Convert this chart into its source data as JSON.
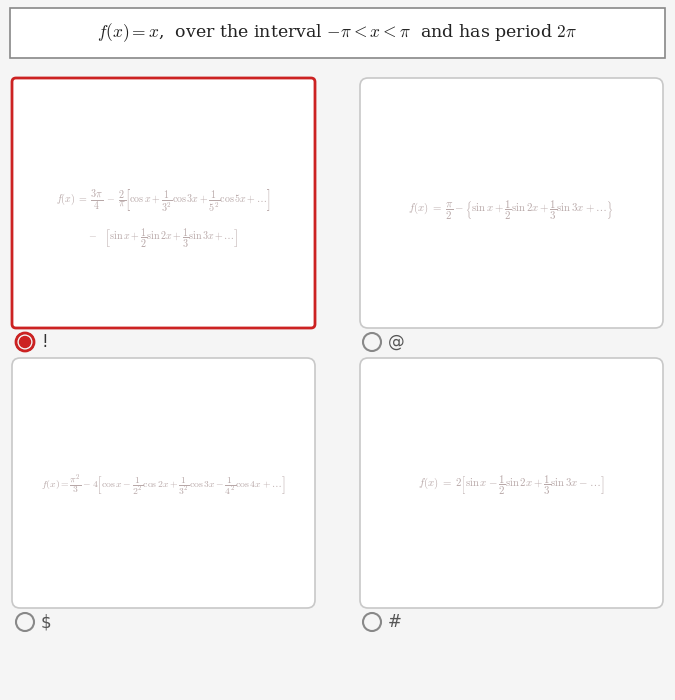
{
  "title": "$f(x) = x$,  over the interval $-\\pi < x < \\pi$  and has period $2\\pi$",
  "bg_color": "#f5f5f5",
  "formula_color": "#b8a8a8",
  "title_color": "#222222",
  "box1_line1": "$f(x)\\; =\\; \\dfrac{3\\pi}{4}\\; -\\; \\dfrac{2}{\\pi} \\left[ \\cos x + \\dfrac{1}{3^2}\\cos 3x + \\dfrac{1}{5^2}\\cos 5x + \\ldots \\right]$",
  "box1_line2": "$-\\quad\\left[ \\sin x + \\dfrac{1}{2}\\sin 2x + \\dfrac{1}{3}\\sin 3x + \\ldots \\right]$",
  "box2_formula": "$f(x) \\;=\\; \\dfrac{\\pi}{2} - \\left\\{ \\sin x + \\dfrac{1}{2}\\sin 2x + \\dfrac{1}{3}\\sin 3x + \\ldots \\right\\}$",
  "box3_formula": "$f(x) = \\dfrac{\\pi^2}{3} - 4\\left[\\cos x - \\dfrac{1}{2^2}\\cos 2x + \\dfrac{1}{3^2}\\cos 3x - \\dfrac{1}{4^2}\\cos 4x + \\ldots\\right]$",
  "box4_formula": "$f(x) \\;=\\; 2\\left[\\sin x - \\dfrac{1}{2}\\sin 2x + \\dfrac{1}{3}\\sin 3x - \\ldots\\right]$",
  "label1": "!",
  "label2": "@",
  "label3": "$",
  "label4": "#"
}
